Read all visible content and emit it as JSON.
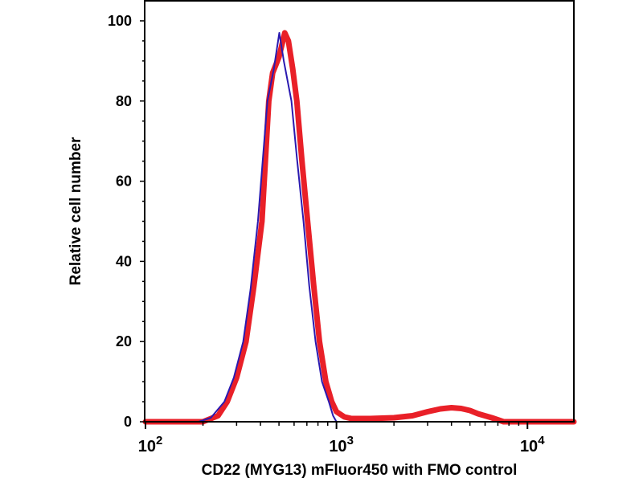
{
  "chart_data": {
    "type": "line",
    "title": "",
    "xlabel": "CD22 (MYG13) mFluor450 with FMO control",
    "ylabel": "Relative cell number",
    "xscale": "log",
    "xlim": [
      100,
      17500
    ],
    "ylim": [
      0,
      105
    ],
    "grid": false,
    "legend": "none",
    "x_ticks": [
      {
        "value": 100,
        "base": "10",
        "exp": "2"
      },
      {
        "value": 1000,
        "base": "10",
        "exp": "3"
      },
      {
        "value": 10000,
        "base": "10",
        "exp": "4"
      }
    ],
    "y_ticks": [
      {
        "value": 0,
        "label": "0"
      },
      {
        "value": 20,
        "label": "20"
      },
      {
        "value": 40,
        "label": "40"
      },
      {
        "value": 60,
        "label": "60"
      },
      {
        "value": 80,
        "label": "80"
      },
      {
        "value": 100,
        "label": "100"
      }
    ],
    "series": [
      {
        "color": "#e8141c",
        "x": [
          100,
          200,
          240,
          268,
          300,
          336,
          370,
          407,
          442,
          463,
          500,
          536,
          560,
          590,
          620,
          660,
          706,
          760,
          815,
          880,
          944,
          1000,
          1100,
          1200,
          1500,
          2000,
          2500,
          3000,
          3500,
          4000,
          4500,
          5000,
          5500,
          6500,
          7500,
          17500
        ],
        "y": [
          0,
          0,
          1.5,
          5,
          11,
          20,
          34,
          50,
          80,
          87,
          91,
          97,
          95,
          88,
          80,
          65,
          50,
          34,
          20,
          10,
          5,
          2.5,
          1.2,
          0.8,
          0.8,
          1,
          1.5,
          2.5,
          3.2,
          3.5,
          3.3,
          2.8,
          2,
          1,
          0,
          0
        ]
      },
      {
        "color": "#2a1ab0",
        "x": [
          100,
          190,
          220,
          259,
          290,
          325,
          355,
          388,
          435,
          470,
          502,
          530,
          581,
          620,
          672,
          720,
          777,
          840,
          912,
          960,
          1000,
          17500
        ],
        "y": [
          0,
          0,
          1,
          5,
          11,
          20,
          33,
          50,
          80,
          88,
          97,
          90,
          80,
          66,
          50,
          34,
          20,
          10,
          5,
          1.5,
          0,
          0
        ]
      }
    ]
  }
}
